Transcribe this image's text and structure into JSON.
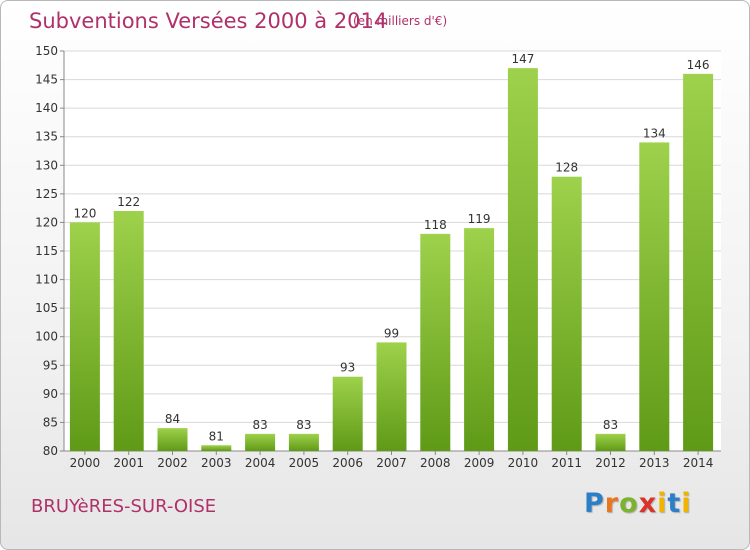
{
  "header": {
    "title": "Subventions Versées 2000 à 2014",
    "subtitle": "(en milliers d'€)"
  },
  "footer": {
    "commune": "BRUYèRES-SUR-OISE",
    "logo": {
      "p": "P",
      "r": "r",
      "o": "o",
      "x": "x",
      "i": "i",
      "t": "t",
      "i2": "i"
    }
  },
  "colors": {
    "bar_light": "#9ed14c",
    "bar_dark": "#5f9a16",
    "title": "#b0306a",
    "grid": "#d8d8d8"
  },
  "chart_data": {
    "type": "bar",
    "title": "Subventions Versées 2000 à 2014",
    "categories": [
      "2000",
      "2001",
      "2002",
      "2003",
      "2004",
      "2005",
      "2006",
      "2007",
      "2008",
      "2009",
      "2010",
      "2011",
      "2012",
      "2013",
      "2014"
    ],
    "values": [
      120,
      122,
      84,
      81,
      83,
      83,
      93,
      99,
      118,
      119,
      147,
      128,
      83,
      134,
      146
    ],
    "ylim": [
      80,
      150
    ],
    "yticks": [
      80,
      85,
      90,
      95,
      100,
      105,
      110,
      115,
      120,
      125,
      130,
      135,
      140,
      145,
      150
    ],
    "grid": true
  }
}
